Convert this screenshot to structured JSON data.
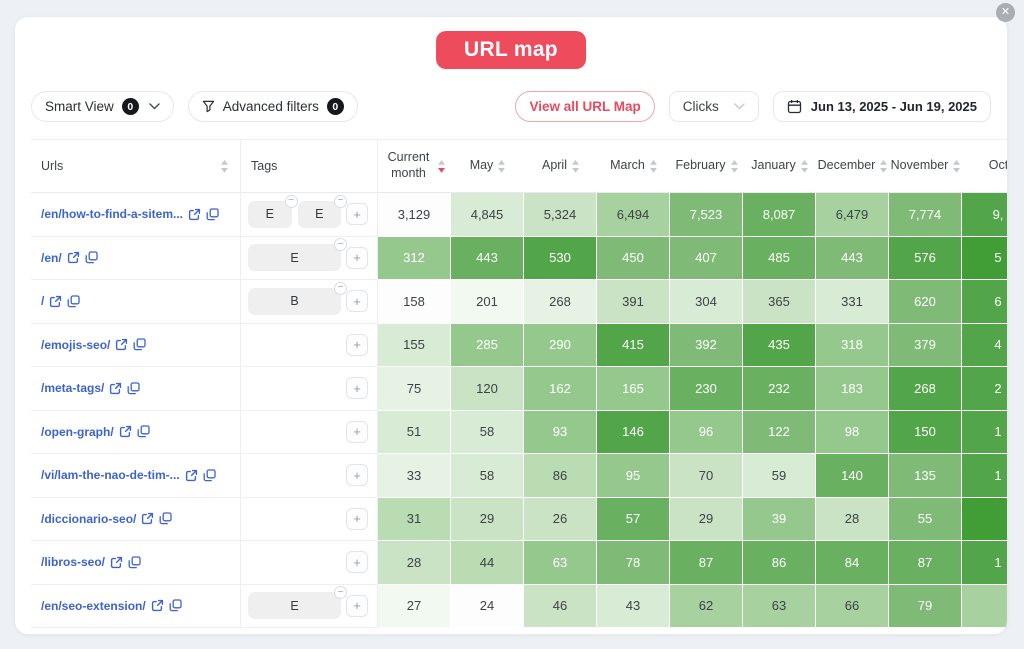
{
  "window": {
    "close_glyph": "✕"
  },
  "title": "URL map",
  "toolbar": {
    "smart_view": {
      "label": "Smart View",
      "count": "0"
    },
    "advanced_filters": {
      "label": "Advanced filters",
      "count": "0"
    },
    "view_all_label": "View all URL Map",
    "metric_selected": "Clicks",
    "date_range": "Jun 13, 2025 - Jun 19, 2025"
  },
  "table": {
    "columns": [
      {
        "label": "Urls",
        "type": "url",
        "sortable": true
      },
      {
        "label": "Tags",
        "type": "tags",
        "sortable": false
      },
      {
        "label": "Current month",
        "type": "num",
        "sortable": true,
        "sort": "desc"
      },
      {
        "label": "May",
        "type": "num",
        "sortable": true
      },
      {
        "label": "April",
        "type": "num",
        "sortable": true
      },
      {
        "label": "March",
        "type": "num",
        "sortable": true
      },
      {
        "label": "February",
        "type": "num",
        "sortable": true
      },
      {
        "label": "January",
        "type": "num",
        "sortable": true
      },
      {
        "label": "December",
        "type": "num",
        "sortable": true
      },
      {
        "label": "November",
        "type": "num",
        "sortable": true
      },
      {
        "label": "Oct",
        "type": "num",
        "sortable": false
      }
    ],
    "rows": [
      {
        "url": "/en/how-to-find-a-sitem...",
        "tags": [
          "E",
          "E"
        ],
        "values": [
          "3,129",
          "4,845",
          "5,324",
          "6,494",
          "7,523",
          "8,087",
          "6,479",
          "7,774",
          "9,"
        ],
        "levels": [
          0,
          3,
          4,
          6,
          8,
          9,
          6,
          8,
          10
        ]
      },
      {
        "url": "/en/",
        "tags": [
          "E"
        ],
        "values": [
          "312",
          "443",
          "530",
          "450",
          "407",
          "485",
          "443",
          "576",
          "5"
        ],
        "levels": [
          7,
          9,
          10,
          8,
          8,
          9,
          8,
          10,
          11
        ]
      },
      {
        "url": "/",
        "tags": [
          "B"
        ],
        "values": [
          "158",
          "201",
          "268",
          "391",
          "304",
          "365",
          "331",
          "620",
          "6"
        ],
        "levels": [
          0,
          1,
          2,
          4,
          3,
          4,
          3,
          8,
          10
        ]
      },
      {
        "url": "/emojis-seo/",
        "tags": [],
        "values": [
          "155",
          "285",
          "290",
          "415",
          "392",
          "435",
          "318",
          "379",
          "4"
        ],
        "levels": [
          3,
          7,
          7,
          10,
          8,
          10,
          7,
          8,
          10
        ]
      },
      {
        "url": "/meta-tags/",
        "tags": [],
        "values": [
          "75",
          "120",
          "162",
          "165",
          "230",
          "232",
          "183",
          "268",
          "2"
        ],
        "levels": [
          2,
          4,
          7,
          7,
          9,
          9,
          7,
          10,
          10
        ]
      },
      {
        "url": "/open-graph/",
        "tags": [],
        "values": [
          "51",
          "58",
          "93",
          "146",
          "96",
          "122",
          "98",
          "150",
          "1"
        ],
        "levels": [
          3,
          3,
          7,
          10,
          7,
          8,
          7,
          10,
          10
        ]
      },
      {
        "url": "/vi/lam-the-nao-de-tim-...",
        "tags": [],
        "values": [
          "33",
          "58",
          "86",
          "95",
          "70",
          "59",
          "140",
          "135",
          "1"
        ],
        "levels": [
          2,
          3,
          5,
          7,
          4,
          3,
          9,
          8,
          10
        ]
      },
      {
        "url": "/diccionario-seo/",
        "tags": [],
        "values": [
          "31",
          "29",
          "26",
          "57",
          "29",
          "39",
          "28",
          "55",
          ""
        ],
        "levels": [
          5,
          4,
          4,
          9,
          4,
          7,
          4,
          8,
          11
        ]
      },
      {
        "url": "/libros-seo/",
        "tags": [],
        "values": [
          "28",
          "44",
          "63",
          "78",
          "87",
          "86",
          "84",
          "87",
          "1"
        ],
        "levels": [
          4,
          5,
          7,
          8,
          9,
          9,
          9,
          9,
          10
        ]
      },
      {
        "url": "/en/seo-extension/",
        "tags": [
          "E"
        ],
        "values": [
          "27",
          "24",
          "46",
          "43",
          "62",
          "63",
          "66",
          "79",
          ""
        ],
        "levels": [
          1,
          0,
          4,
          3,
          6,
          6,
          6,
          8,
          6
        ]
      }
    ]
  },
  "heatmap": {
    "palette": [
      "#fcfdfc",
      "#f2f9f1",
      "#e6f2e3",
      "#d8ebd4",
      "#c9e3c4",
      "#b9dcb3",
      "#a7d2a0",
      "#95c88d",
      "#7fbb77",
      "#69b060",
      "#52a548",
      "#419e36"
    ],
    "white_text_min_level": 7
  },
  "colors": {
    "accent_red": "#ee4c5c",
    "link_blue": "#3c63cf",
    "sort_active": "#e8495f"
  }
}
